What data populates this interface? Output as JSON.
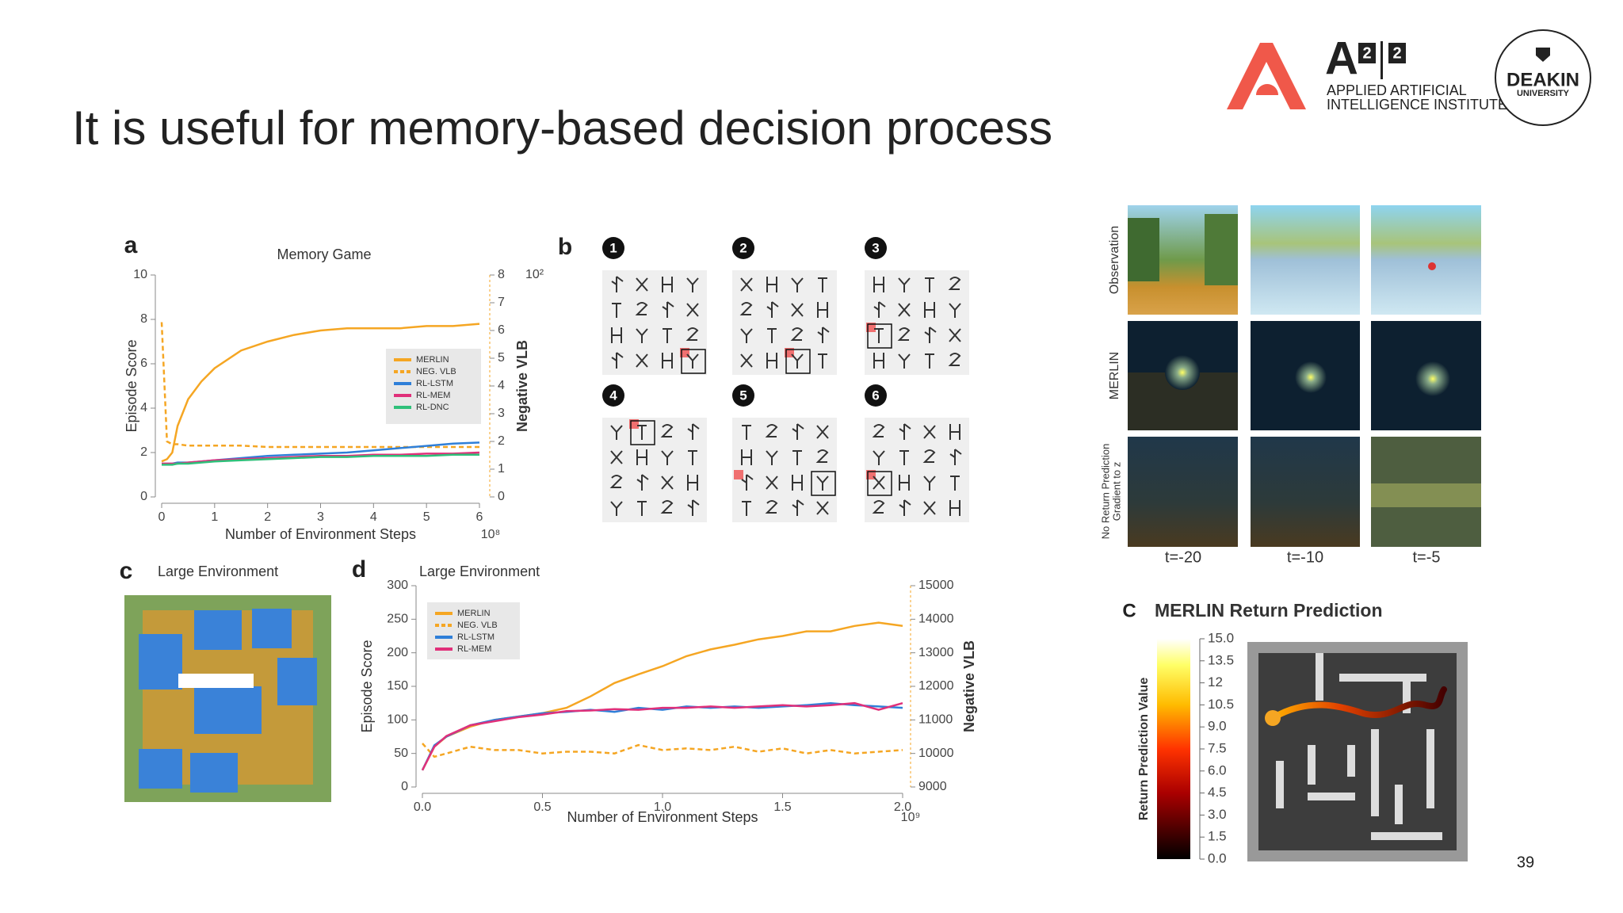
{
  "slide": {
    "title": "It is useful for memory-based decision process",
    "page_number": "39",
    "logo_a2i2": {
      "mark": "A",
      "sup1": "2",
      "sup2": "2",
      "line1": "APPLIED ARTIFICIAL",
      "line2": "INTELLIGENCE INSTITUTE"
    },
    "logo_deakin": {
      "name": "DEAKIN",
      "sub": "UNIVERSITY"
    }
  },
  "panel_b": {
    "letter": "b",
    "steps": [
      "1",
      "2",
      "3",
      "4",
      "5",
      "6"
    ]
  },
  "observation_panel": {
    "row_labels": [
      "Observation",
      "MERLIN",
      "No Return Prediction",
      "Gradient to z"
    ],
    "time_labels": [
      "t=-20",
      "t=-10",
      "t=-5"
    ]
  },
  "large_env_map": {
    "letter": "c",
    "title": "Large Environment"
  },
  "chart_data": [
    {
      "type": "line",
      "panel": "a",
      "title": "Memory Game",
      "x_label": "Number of Environment Steps",
      "x_multiplier": "10⁸",
      "y_label": "Episode Score",
      "y2_label": "Negative VLB",
      "y2_multiplier": "10²",
      "x": [
        0,
        0.1,
        0.2,
        0.3,
        0.5,
        0.75,
        1,
        1.5,
        2,
        2.5,
        3,
        3.5,
        4,
        4.5,
        5,
        5.5,
        6
      ],
      "xlim": [
        0,
        6
      ],
      "xticks": [
        0,
        1,
        2,
        3,
        4,
        5,
        6
      ],
      "ylim": [
        0,
        10
      ],
      "yticks": [
        0,
        2,
        4,
        6,
        8,
        10
      ],
      "y2lim": [
        0,
        8
      ],
      "y2ticks": [
        0,
        1,
        2,
        3,
        4,
        5,
        6,
        7,
        8
      ],
      "series": [
        {
          "name": "MERLIN",
          "color": "#f5a623",
          "style": "solid",
          "values": [
            1.6,
            1.7,
            2.0,
            3.2,
            4.4,
            5.2,
            5.8,
            6.6,
            7.0,
            7.3,
            7.5,
            7.6,
            7.6,
            7.6,
            7.7,
            7.7,
            7.8
          ]
        },
        {
          "name": "NEG. VLB",
          "color": "#f5a623",
          "style": "dashed",
          "axis": "y2",
          "values": [
            6.3,
            2.0,
            1.9,
            1.9,
            1.85,
            1.85,
            1.85,
            1.85,
            1.8,
            1.8,
            1.8,
            1.8,
            1.8,
            1.8,
            1.8,
            1.8,
            1.8
          ]
        },
        {
          "name": "RL-LSTM",
          "color": "#2f7fd8",
          "style": "solid",
          "values": [
            1.5,
            1.5,
            1.5,
            1.55,
            1.55,
            1.6,
            1.65,
            1.75,
            1.85,
            1.9,
            1.95,
            2.0,
            2.1,
            2.2,
            2.3,
            2.4,
            2.45
          ]
        },
        {
          "name": "RL-MEM",
          "color": "#e0307a",
          "style": "solid",
          "values": [
            1.5,
            1.5,
            1.5,
            1.5,
            1.55,
            1.6,
            1.65,
            1.7,
            1.75,
            1.8,
            1.85,
            1.85,
            1.9,
            1.9,
            1.95,
            1.95,
            2.0
          ]
        },
        {
          "name": "RL-DNC",
          "color": "#2fc07a",
          "style": "solid",
          "values": [
            1.45,
            1.45,
            1.45,
            1.5,
            1.5,
            1.55,
            1.6,
            1.65,
            1.7,
            1.75,
            1.8,
            1.8,
            1.85,
            1.85,
            1.85,
            1.9,
            1.9
          ]
        }
      ]
    },
    {
      "type": "line",
      "panel": "d",
      "title": "Large Environment",
      "x_label": "Number of Environment Steps",
      "x_multiplier": "10⁹",
      "y_label": "Episode Score",
      "y2_label": "Negative VLB",
      "x": [
        0,
        0.05,
        0.1,
        0.2,
        0.3,
        0.4,
        0.5,
        0.6,
        0.7,
        0.8,
        0.9,
        1.0,
        1.1,
        1.2,
        1.3,
        1.4,
        1.5,
        1.6,
        1.7,
        1.8,
        1.9,
        2.0
      ],
      "xlim": [
        0,
        2
      ],
      "xticks": [
        {
          "value": 0,
          "label": "0.0"
        },
        0.5,
        {
          "value": 1,
          "label": "1.0"
        },
        1.5,
        {
          "value": 2,
          "label": "2.0"
        }
      ],
      "ylim": [
        0,
        300
      ],
      "yticks": [
        0,
        50,
        100,
        150,
        200,
        250,
        300
      ],
      "y2lim": [
        9000,
        15000
      ],
      "y2ticks": [
        9000,
        10000,
        11000,
        12000,
        13000,
        14000,
        15000
      ],
      "series": [
        {
          "name": "MERLIN",
          "color": "#f5a623",
          "style": "solid",
          "values": [
            25,
            60,
            75,
            90,
            100,
            105,
            110,
            118,
            135,
            155,
            168,
            180,
            195,
            205,
            212,
            220,
            225,
            232,
            232,
            240,
            245,
            240
          ]
        },
        {
          "name": "NEG. VLB",
          "color": "#f5a623",
          "style": "dashed",
          "axis": "y2",
          "values": [
            10300,
            9900,
            10000,
            10200,
            10100,
            10100,
            10000,
            10050,
            10050,
            10000,
            10250,
            10100,
            10150,
            10100,
            10200,
            10050,
            10150,
            10000,
            10100,
            10000,
            10050,
            10100
          ]
        },
        {
          "name": "RL-LSTM",
          "color": "#2f7fd8",
          "style": "solid",
          "values": [
            25,
            62,
            75,
            92,
            100,
            105,
            110,
            112,
            115,
            112,
            118,
            115,
            120,
            118,
            120,
            118,
            120,
            122,
            125,
            122,
            120,
            118
          ]
        },
        {
          "name": "RL-MEM",
          "color": "#e0307a",
          "style": "solid",
          "values": [
            25,
            60,
            76,
            92,
            98,
            104,
            108,
            113,
            114,
            116,
            115,
            118,
            118,
            120,
            118,
            120,
            122,
            120,
            122,
            125,
            115,
            125
          ]
        }
      ]
    },
    {
      "type": "colorbar",
      "panel": "C",
      "title": "MERLIN Return Prediction",
      "y_label": "Return Prediction Value",
      "ylim": [
        0,
        15
      ],
      "yticks": [
        {
          "value": 0,
          "label": "0.0"
        },
        1.5,
        {
          "value": 3,
          "label": "3.0"
        },
        4.5,
        {
          "value": 6,
          "label": "6.0"
        },
        7.5,
        {
          "value": 9,
          "label": "9.0"
        },
        10.5,
        12,
        13.5,
        {
          "value": 15,
          "label": "15.0"
        }
      ]
    }
  ]
}
